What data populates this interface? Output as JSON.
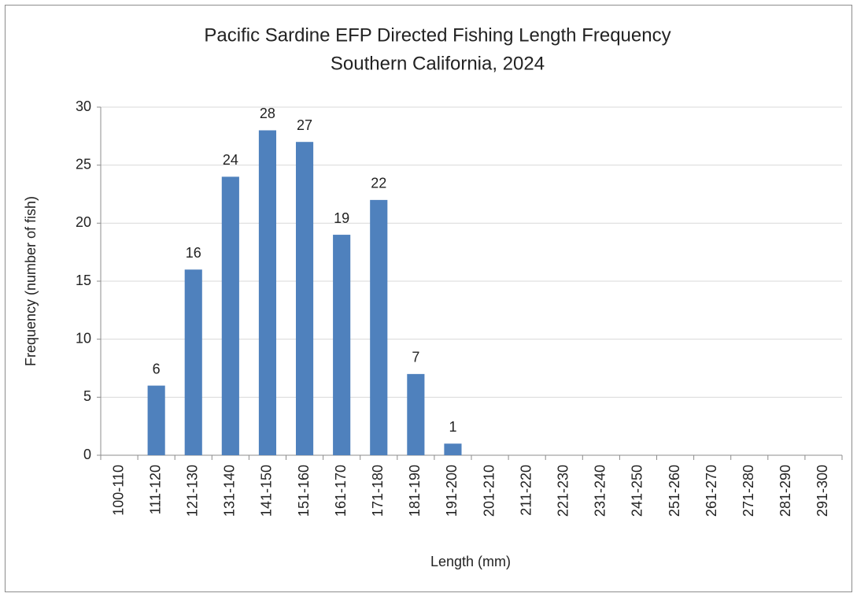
{
  "chart_data": {
    "type": "bar",
    "title": "Pacific Sardine EFP Directed Fishing Length Frequency",
    "subtitle": "Southern California, 2024",
    "x_label": "Length (mm)",
    "y_label": "Frequency (number of fish)",
    "categories": [
      "100-110",
      "111-120",
      "121-130",
      "131-140",
      "141-150",
      "151-160",
      "161-170",
      "171-180",
      "181-190",
      "191-200",
      "201-210",
      "211-220",
      "221-230",
      "231-240",
      "241-250",
      "251-260",
      "261-270",
      "271-280",
      "281-290",
      "291-300"
    ],
    "values": [
      0,
      6,
      16,
      24,
      28,
      27,
      19,
      22,
      7,
      1,
      0,
      0,
      0,
      0,
      0,
      0,
      0,
      0,
      0,
      0
    ],
    "color": "#4f81bd",
    "ylim": [
      0,
      30
    ],
    "yticks": [
      0,
      5,
      10,
      15,
      20,
      25,
      30
    ],
    "grid": true
  }
}
